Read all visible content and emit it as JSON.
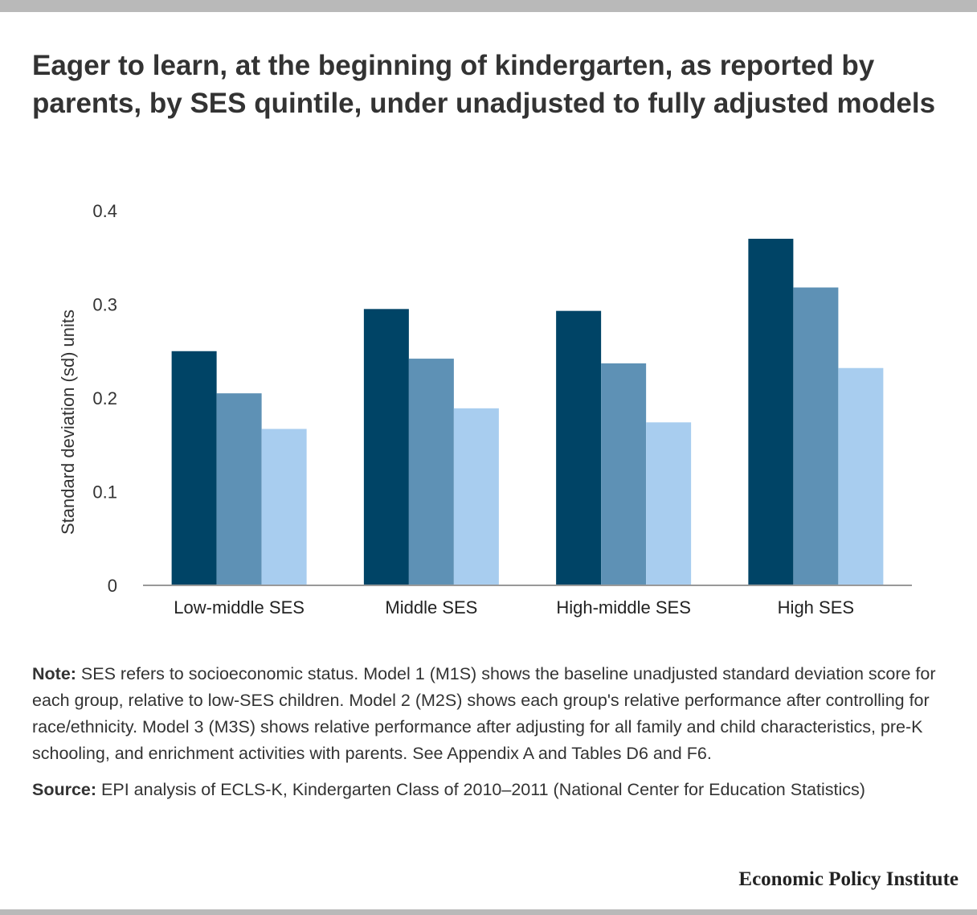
{
  "title": "Eager to learn, at the beginning of kindergarten, as reported by parents, by SES quintile, under unadjusted to fully adjusted models",
  "chart_data": {
    "type": "bar",
    "title": "Eager to learn, at the beginning of kindergarten, as reported by parents, by SES quintile, under unadjusted to fully adjusted models",
    "xlabel": "",
    "ylabel": "Standard deviation (sd) units",
    "ylim": [
      0,
      0.4
    ],
    "yticks": [
      "0",
      "0.1",
      "0.2",
      "0.3",
      "0.4"
    ],
    "categories": [
      "Low-middle SES",
      "Middle SES",
      "High-middle SES",
      "High SES"
    ],
    "series": [
      {
        "values": [
          0.25,
          0.295,
          0.293,
          0.37
        ],
        "color": "#004466"
      },
      {
        "values": [
          0.205,
          0.242,
          0.237,
          0.318
        ],
        "color": "#5e91b5"
      },
      {
        "values": [
          0.167,
          0.189,
          0.174,
          0.232
        ],
        "color": "#a8cdef"
      }
    ],
    "grid": false,
    "legend": "none"
  },
  "notes": {
    "note_label": "Note:",
    "note_text": " SES refers to socioeconomic status. Model 1 (M1S) shows the baseline unadjusted standard deviation score for each group, relative to low-SES children. Model 2 (M2S) shows each group's relative performance after controlling for race/ethnicity. Model 3 (M3S) shows relative performance after adjusting for all family and child characteristics, pre-K schooling, and enrichment activities with parents. See Appendix A and Tables D6 and F6.",
    "source_label": "Source:",
    "source_text": " EPI analysis of ECLS-K, Kindergarten Class of 2010–2011 (National Center for Education Statistics)"
  },
  "brand": "Economic Policy Institute"
}
